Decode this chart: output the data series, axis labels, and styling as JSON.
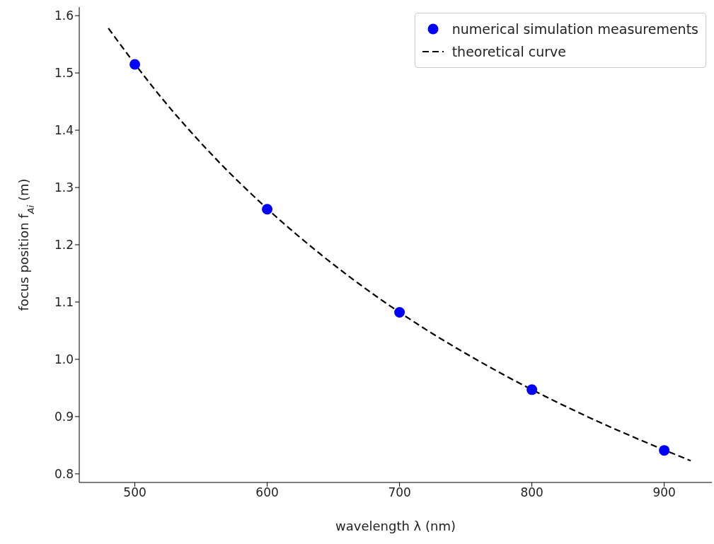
{
  "chart_data": {
    "type": "scatter",
    "xlabel": "wavelength λ (nm)",
    "ylabel": "focus position f$_{Ai}$ (m)",
    "xlim": [
      458,
      936
    ],
    "ylim": [
      0.785,
      1.615
    ],
    "xticks": [
      500,
      600,
      700,
      800,
      900
    ],
    "yticks": [
      0.8,
      0.9,
      {
        "value": 1.0,
        "label": "1.0"
      },
      1.1,
      1.2,
      1.3,
      1.4,
      1.5,
      1.6
    ],
    "grid": false,
    "legend": "top right",
    "series": [
      {
        "name": "numerical simulation measurements",
        "color": "#0000ff",
        "marker": "circle",
        "x": [
          500,
          600,
          700,
          800,
          900
        ],
        "values": [
          1.515,
          1.262,
          1.082,
          0.947,
          0.841
        ]
      },
      {
        "name": "theoretical curve",
        "type": "line",
        "color": "#000000",
        "line_style": "dashed",
        "marker": "none",
        "x": [
          480,
          520,
          560,
          600,
          640,
          680,
          720,
          760,
          800,
          840,
          880,
          920
        ],
        "values": [
          1.578,
          1.457,
          1.353,
          1.263,
          1.184,
          1.114,
          1.052,
          0.997,
          0.947,
          0.902,
          0.861,
          0.823
        ]
      }
    ]
  }
}
